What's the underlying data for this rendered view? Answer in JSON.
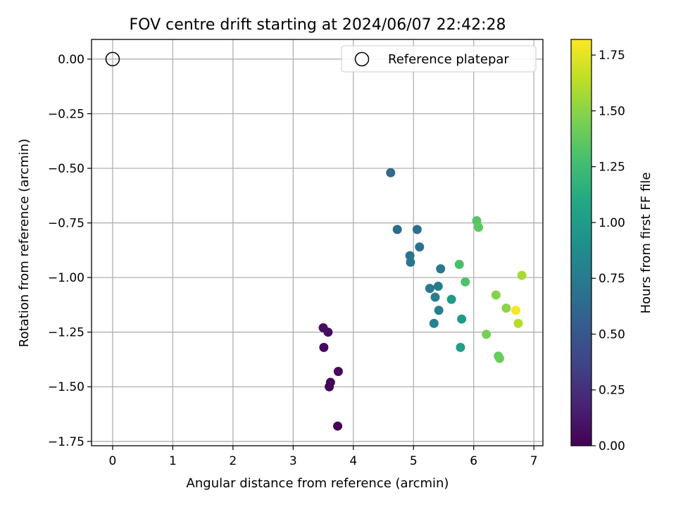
{
  "chart_data": {
    "type": "scatter",
    "title": "FOV centre drift starting at 2024/06/07 22:42:28",
    "xlabel": "Angular distance from reference (arcmin)",
    "ylabel": "Rotation from reference (arcmin)",
    "xlim": [
      -0.35,
      7.15
    ],
    "ylim": [
      -1.77,
      0.09
    ],
    "xticks": [
      0,
      1,
      2,
      3,
      4,
      5,
      6,
      7
    ],
    "xtick_labels": [
      "0",
      "1",
      "2",
      "3",
      "4",
      "5",
      "6",
      "7"
    ],
    "yticks": [
      0.0,
      -0.25,
      -0.5,
      -0.75,
      -1.0,
      -1.25,
      -1.5,
      -1.75
    ],
    "ytick_labels": [
      "0.00",
      "−0.25",
      "−0.50",
      "−0.75",
      "−1.00",
      "−1.25",
      "−1.50",
      "−1.75"
    ],
    "grid": true,
    "legend": {
      "position": "top-right",
      "entries": [
        "Reference platepar"
      ]
    },
    "reference_point": {
      "name": "Reference platepar",
      "x": 0.0,
      "y": 0.0
    },
    "colorbar": {
      "label": "Hours from first FF file",
      "colormap": "viridis",
      "range": [
        0.0,
        1.82
      ],
      "ticks": [
        0.0,
        0.25,
        0.5,
        0.75,
        1.0,
        1.25,
        1.5,
        1.75
      ],
      "tick_labels": [
        "0.00",
        "0.25",
        "0.50",
        "0.75",
        "1.00",
        "1.25",
        "1.50",
        "1.75"
      ]
    },
    "points": [
      {
        "x": 3.74,
        "y": -1.68,
        "hours": 0.0
      },
      {
        "x": 3.6,
        "y": -1.5,
        "hours": 0.02
      },
      {
        "x": 3.62,
        "y": -1.48,
        "hours": 0.03
      },
      {
        "x": 3.75,
        "y": -1.43,
        "hours": 0.04
      },
      {
        "x": 3.51,
        "y": -1.32,
        "hours": 0.05
      },
      {
        "x": 3.58,
        "y": -1.25,
        "hours": 0.06
      },
      {
        "x": 3.5,
        "y": -1.23,
        "hours": 0.07
      },
      {
        "x": 4.62,
        "y": -0.52,
        "hours": 0.62
      },
      {
        "x": 4.73,
        "y": -0.78,
        "hours": 0.64
      },
      {
        "x": 5.06,
        "y": -0.78,
        "hours": 0.66
      },
      {
        "x": 5.1,
        "y": -0.86,
        "hours": 0.68
      },
      {
        "x": 4.94,
        "y": -0.9,
        "hours": 0.7
      },
      {
        "x": 4.95,
        "y": -0.93,
        "hours": 0.71
      },
      {
        "x": 5.45,
        "y": -0.96,
        "hours": 0.73
      },
      {
        "x": 5.27,
        "y": -1.05,
        "hours": 0.74
      },
      {
        "x": 5.41,
        "y": -1.04,
        "hours": 0.75
      },
      {
        "x": 5.36,
        "y": -1.09,
        "hours": 0.77
      },
      {
        "x": 5.42,
        "y": -1.15,
        "hours": 0.78
      },
      {
        "x": 5.34,
        "y": -1.21,
        "hours": 0.8
      },
      {
        "x": 5.63,
        "y": -1.1,
        "hours": 0.98
      },
      {
        "x": 5.8,
        "y": -1.19,
        "hours": 0.99
      },
      {
        "x": 5.78,
        "y": -1.32,
        "hours": 1.01
      },
      {
        "x": 5.76,
        "y": -0.94,
        "hours": 1.28
      },
      {
        "x": 5.86,
        "y": -1.02,
        "hours": 1.31
      },
      {
        "x": 6.05,
        "y": -0.74,
        "hours": 1.34
      },
      {
        "x": 6.08,
        "y": -0.77,
        "hours": 1.36
      },
      {
        "x": 6.41,
        "y": -1.36,
        "hours": 1.38
      },
      {
        "x": 6.43,
        "y": -1.37,
        "hours": 1.4
      },
      {
        "x": 6.21,
        "y": -1.26,
        "hours": 1.45
      },
      {
        "x": 6.37,
        "y": -1.08,
        "hours": 1.48
      },
      {
        "x": 6.54,
        "y": -1.14,
        "hours": 1.5
      },
      {
        "x": 6.8,
        "y": -0.99,
        "hours": 1.58
      },
      {
        "x": 6.74,
        "y": -1.21,
        "hours": 1.62
      },
      {
        "x": 6.7,
        "y": -1.15,
        "hours": 1.8
      }
    ]
  }
}
